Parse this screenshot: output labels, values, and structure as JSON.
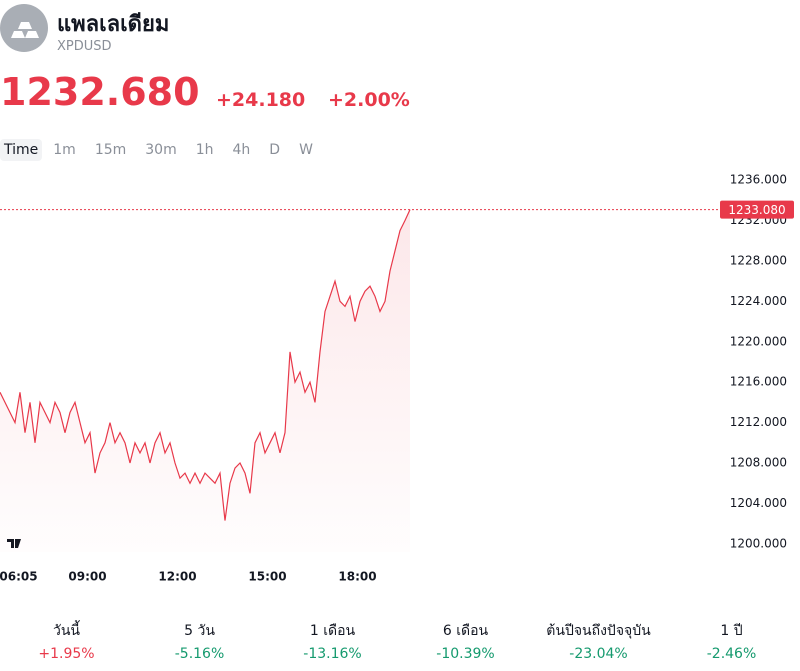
{
  "header": {
    "title": "แพลเลเดียม",
    "symbol": "XPDUSD",
    "price": "1232.680",
    "change": "+24.180",
    "change_percent": "+2.00%"
  },
  "timeframes": [
    "Time",
    "1m",
    "15m",
    "30m",
    "1h",
    "4h",
    "D",
    "W"
  ],
  "chart_data": {
    "type": "line",
    "color": "#e8394a",
    "x": [
      "06:05",
      "06:15",
      "06:25",
      "06:35",
      "06:45",
      "06:55",
      "07:05",
      "07:15",
      "07:25",
      "07:35",
      "07:45",
      "07:55",
      "08:05",
      "08:15",
      "08:25",
      "08:35",
      "08:45",
      "08:55",
      "09:05",
      "09:15",
      "09:25",
      "09:35",
      "09:45",
      "09:55",
      "10:05",
      "10:15",
      "10:25",
      "10:35",
      "10:45",
      "10:55",
      "11:05",
      "11:15",
      "11:25",
      "11:35",
      "11:45",
      "11:55",
      "12:05",
      "12:15",
      "12:25",
      "12:35",
      "12:45",
      "12:55",
      "13:05",
      "13:15",
      "13:25",
      "13:35",
      "13:45",
      "13:55",
      "14:05",
      "14:15",
      "14:25",
      "14:35",
      "14:45",
      "14:55",
      "15:05",
      "15:15",
      "15:25",
      "15:35",
      "15:45",
      "15:55",
      "16:05",
      "16:15",
      "16:25",
      "16:35",
      "16:45",
      "16:55",
      "17:05",
      "17:15",
      "17:25",
      "17:35",
      "17:45",
      "17:55",
      "18:05",
      "18:15",
      "18:25",
      "18:35",
      "18:45",
      "18:55",
      "19:05",
      "19:15",
      "19:25",
      "19:35",
      "19:45"
    ],
    "values": [
      1215,
      1214,
      1213,
      1212,
      1215,
      1211,
      1214,
      1210,
      1214,
      1213,
      1212,
      1214,
      1213,
      1211,
      1213,
      1214,
      1212,
      1210,
      1211,
      1207,
      1209,
      1210,
      1212,
      1210,
      1211,
      1210,
      1208,
      1210,
      1209,
      1210,
      1208,
      1210,
      1211,
      1209,
      1210,
      1208,
      1206.5,
      1207,
      1206,
      1207,
      1206,
      1207,
      1206.5,
      1206,
      1207,
      1202.3,
      1206,
      1207.5,
      1208,
      1207,
      1205,
      1210,
      1211,
      1209,
      1210,
      1211,
      1209,
      1211,
      1219,
      1216,
      1217,
      1215,
      1216,
      1214,
      1219,
      1223,
      1224.5,
      1226,
      1224,
      1223.5,
      1224.5,
      1222,
      1224,
      1225,
      1225.5,
      1224.5,
      1223,
      1224,
      1227,
      1229,
      1231,
      1232,
      1233.08
    ],
    "xlim": [
      "06:05",
      "06:05"
    ],
    "xticks": [
      "06:05",
      "09:00",
      "12:00",
      "15:00",
      "18:00"
    ],
    "ylim": [
      1198.4,
      1237
    ],
    "yticks": [
      {
        "value": 1200,
        "label": "1200.000"
      },
      {
        "value": 1204,
        "label": "1204.000"
      },
      {
        "value": 1208,
        "label": "1208.000"
      },
      {
        "value": 1212,
        "label": "1212.000"
      },
      {
        "value": 1216,
        "label": "1216.000"
      },
      {
        "value": 1220,
        "label": "1220.000"
      },
      {
        "value": 1224,
        "label": "1224.000"
      },
      {
        "value": 1228,
        "label": "1228.000"
      },
      {
        "value": 1232,
        "label": "1232.000"
      },
      {
        "value": 1236,
        "label": "1236.000"
      }
    ],
    "price_line": {
      "value": 1233.08,
      "label": "1233.080"
    }
  },
  "performance": [
    {
      "label": "วันนี้",
      "value": "+1.95%",
      "color": "#e8394a"
    },
    {
      "label": "5 วัน",
      "value": "-5.16%",
      "color": "#159a6e"
    },
    {
      "label": "1 เดือน",
      "value": "-13.16%",
      "color": "#159a6e"
    },
    {
      "label": "6 เดือน",
      "value": "-10.39%",
      "color": "#159a6e"
    },
    {
      "label": "ต้นปีจนถึงปัจจุบัน",
      "value": "-23.04%",
      "color": "#159a6e"
    },
    {
      "label": "1 ปี",
      "value": "-2.46%",
      "color": "#159a6e"
    }
  ]
}
